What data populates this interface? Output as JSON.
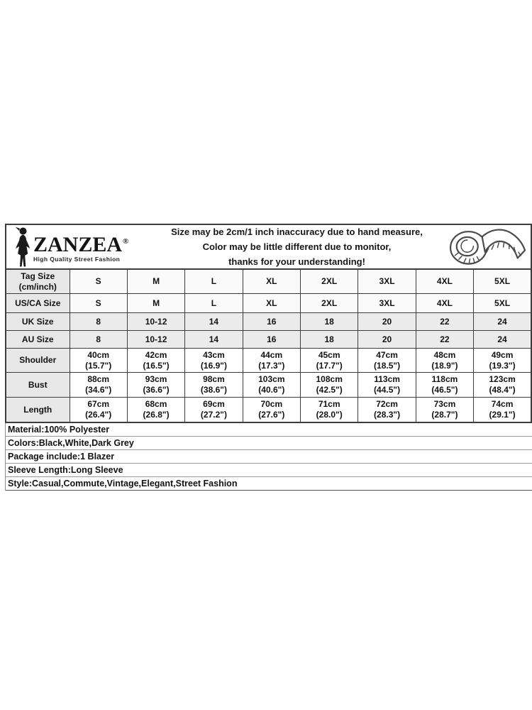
{
  "header": {
    "logo": {
      "brand": "ZANZEA",
      "registered_mark": "®",
      "tagline": "High Quality Street Fashion"
    },
    "disclaimer_lines": [
      "Size may be 2cm/1 inch inaccuracy due to hand measure,",
      "Color may be little different due to monitor,",
      "thanks for your understanding!"
    ]
  },
  "size_table": {
    "rows": [
      {
        "label": "Tag Size\n(cm/inch)",
        "shade": "light",
        "cells": [
          "S",
          "M",
          "L",
          "XL",
          "2XL",
          "3XL",
          "4XL",
          "5XL"
        ]
      },
      {
        "label": "US/CA Size",
        "shade": "light",
        "cells": [
          "S",
          "M",
          "L",
          "XL",
          "2XL",
          "3XL",
          "4XL",
          "5XL"
        ]
      },
      {
        "label": "UK Size",
        "shade": "gray",
        "cells": [
          "8",
          "10-12",
          "14",
          "16",
          "18",
          "20",
          "22",
          "24"
        ]
      },
      {
        "label": "AU Size",
        "shade": "gray",
        "cells": [
          "8",
          "10-12",
          "14",
          "16",
          "18",
          "20",
          "22",
          "24"
        ]
      },
      {
        "label": "Shoulder",
        "shade": "white",
        "cells": [
          "40cm\n(15.7\")",
          "42cm\n(16.5\")",
          "43cm\n(16.9\")",
          "44cm\n(17.3\")",
          "45cm\n(17.7\")",
          "47cm\n(18.5\")",
          "48cm\n(18.9\")",
          "49cm\n(19.3\")"
        ]
      },
      {
        "label": "Bust",
        "shade": "white",
        "cells": [
          "88cm\n(34.6\")",
          "93cm\n(36.6\")",
          "98cm\n(38.6\")",
          "103cm\n(40.6\")",
          "108cm\n(42.5\")",
          "113cm\n(44.5\")",
          "118cm\n(46.5\")",
          "123cm\n(48.4\")"
        ]
      },
      {
        "label": "Length",
        "shade": "white",
        "cells": [
          "67cm\n(26.4\")",
          "68cm\n(26.8\")",
          "69cm\n(27.2\")",
          "70cm\n(27.6\")",
          "71cm\n(28.0\")",
          "72cm\n(28.3\")",
          "73cm\n(28.7\")",
          "74cm\n(29.1\")"
        ]
      }
    ]
  },
  "product_details": {
    "lines": [
      "Material:100% Polyester",
      "Colors:Black,White,Dark Grey",
      "Package include:1 Blazer",
      "Sleeve Length:Long Sleeve",
      "Style:Casual,Commute,Vintage,Elegant,Street Fashion"
    ]
  },
  "colors": {
    "border": "#3d3d3d",
    "label_cell_bg": "#e7e7e7",
    "row_light_bg": "#fafafa",
    "row_gray_bg": "#ebebeb",
    "text": "#111111"
  }
}
